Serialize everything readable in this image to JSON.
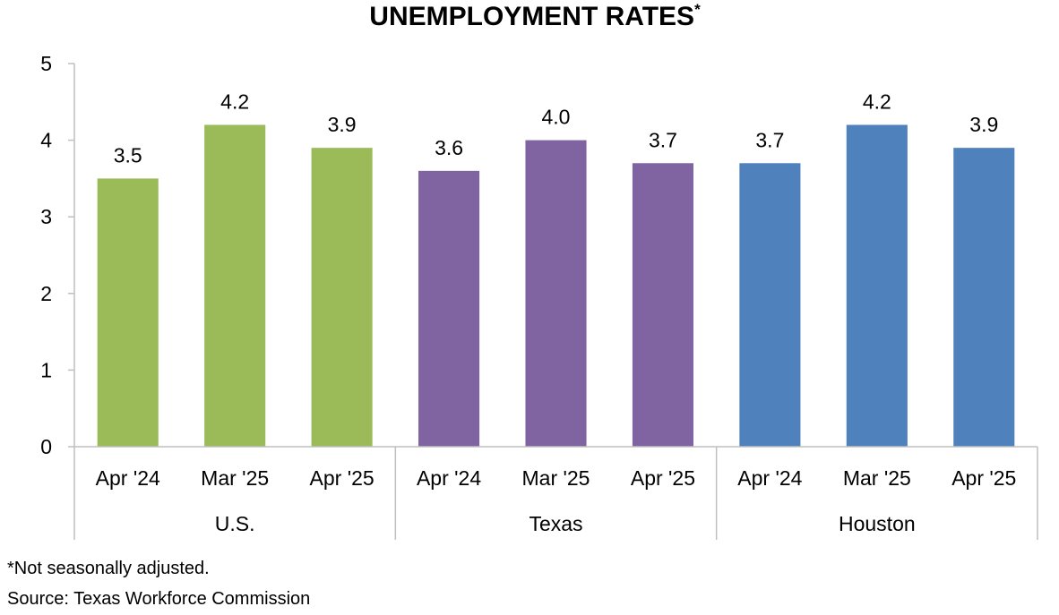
{
  "chart_data": {
    "type": "bar",
    "title": "UNEMPLOYMENT RATES",
    "title_marker": "*",
    "ylim": [
      0,
      5
    ],
    "yticks": [
      0,
      1,
      2,
      3,
      4,
      5
    ],
    "grid": false,
    "legend": "none",
    "groups": [
      {
        "name": "U.S.",
        "color": "#9BBB59",
        "categories": [
          "Apr '24",
          "Mar '25",
          "Apr '25"
        ],
        "values": [
          3.5,
          4.2,
          3.9
        ],
        "labels": [
          "3.5",
          "4.2",
          "3.9"
        ]
      },
      {
        "name": "Texas",
        "color": "#8064A2",
        "categories": [
          "Apr '24",
          "Mar '25",
          "Apr '25"
        ],
        "values": [
          3.6,
          4.0,
          3.7
        ],
        "labels": [
          "3.6",
          "4.0",
          "3.7"
        ]
      },
      {
        "name": "Houston",
        "color": "#4F81BD",
        "categories": [
          "Apr '24",
          "Mar '25",
          "Apr '25"
        ],
        "values": [
          3.7,
          4.2,
          3.9
        ],
        "labels": [
          "3.7",
          "4.2",
          "3.9"
        ]
      }
    ]
  },
  "footnotes": {
    "note": "*Not seasonally adjusted.",
    "source": "Source: Texas Workforce Commission"
  }
}
